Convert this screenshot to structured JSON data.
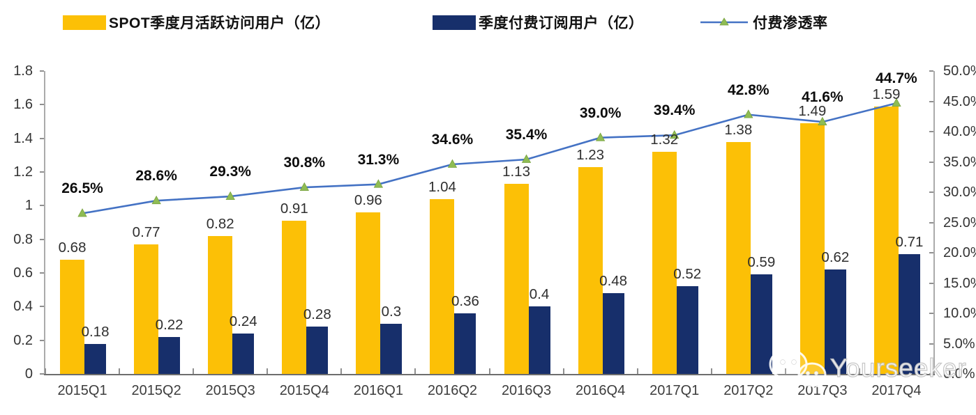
{
  "chart_data": {
    "type": "bar",
    "subtype": "combo-bar-line-dual-axis",
    "categories": [
      "2015Q1",
      "2015Q2",
      "2015Q3",
      "2015Q4",
      "2016Q1",
      "2016Q2",
      "2016Q3",
      "2016Q4",
      "2017Q1",
      "2017Q2",
      "2017Q3",
      "2017Q4"
    ],
    "series": [
      {
        "name": "SPOT季度月活跃访问用户（亿）",
        "type": "bar",
        "axis": "left",
        "color": "#FCC006",
        "values": [
          0.68,
          0.77,
          0.82,
          0.91,
          0.96,
          1.04,
          1.13,
          1.23,
          1.32,
          1.38,
          1.49,
          1.59
        ],
        "labels": [
          "0.68",
          "0.77",
          "0.82",
          "0.91",
          "0.96",
          "1.04",
          "1.13",
          "1.23",
          "1.32",
          "1.38",
          "1.49",
          "1.59"
        ]
      },
      {
        "name": "季度付费订阅用户（亿）",
        "type": "bar",
        "axis": "left",
        "color": "#172F6B",
        "values": [
          0.18,
          0.22,
          0.24,
          0.28,
          0.3,
          0.36,
          0.4,
          0.48,
          0.52,
          0.59,
          0.62,
          0.71
        ],
        "labels": [
          "0.18",
          "0.22",
          "0.24",
          "0.28",
          "0.3",
          "0.36",
          "0.4",
          "0.48",
          "0.52",
          "0.59",
          "0.62",
          "0.71"
        ]
      },
      {
        "name": "付费渗透率",
        "type": "line",
        "axis": "right",
        "color": "#4472C4",
        "marker": "triangle",
        "marker_color": "#8FBC54",
        "values": [
          26.5,
          28.6,
          29.3,
          30.8,
          31.3,
          34.6,
          35.4,
          39.0,
          39.4,
          42.8,
          41.6,
          44.7
        ],
        "labels": [
          "26.5%",
          "28.6%",
          "29.3%",
          "30.8%",
          "31.3%",
          "34.6%",
          "35.4%",
          "39.0%",
          "39.4%",
          "42.8%",
          "41.6%",
          "44.7%"
        ]
      }
    ],
    "left_axis": {
      "min": 0,
      "max": 1.8,
      "ticks": [
        "0",
        "0.2",
        "0.4",
        "0.6",
        "0.8",
        "1",
        "1.2",
        "1.4",
        "1.6",
        "1.8"
      ]
    },
    "right_axis": {
      "min": 0,
      "max": 50,
      "ticks": [
        "0.0%",
        "5.0%",
        "10.0%",
        "15.0%",
        "20.0%",
        "25.0%",
        "30.0%",
        "35.0%",
        "40.0%",
        "45.0%",
        "50.0%"
      ]
    },
    "grid": false,
    "legend_position": "top",
    "title": ""
  },
  "watermark": {
    "text": "Yourseeker",
    "icon": "wechat-icon"
  }
}
